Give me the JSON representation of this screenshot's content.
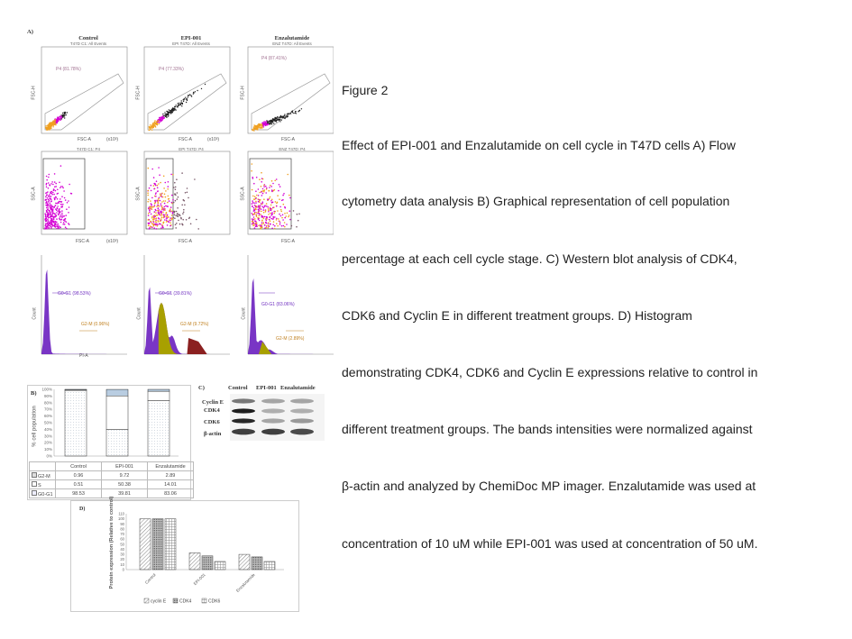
{
  "panel_labels": {
    "a": "A)",
    "b": "B)",
    "c": "C)",
    "d": "D)"
  },
  "flow": {
    "columns": [
      {
        "title": "Control",
        "sub1": "T47D C1: All Events",
        "sub2": "T47D C1: P4"
      },
      {
        "title": "EPI-001",
        "sub1": "EPI T47D: All Events",
        "sub2": "EPI T47D: P4"
      },
      {
        "title": "Enzalutamide",
        "sub1": "ENZ T47D: All Events",
        "sub2": "ENZ T47D: P4"
      }
    ],
    "scatter_gates": [
      "P4 (81.78%)",
      "P4 (77.33%)",
      "P4 (87.41%)"
    ],
    "hist_peaks": [
      "G0-G1 (98.53%)",
      "G0-G1 (39.81%)",
      "G0-G1 (83.06%)"
    ],
    "hist_g2m": [
      "G2-M (0.96%)",
      "G2-M (9.72%)",
      "G2-M (2.89%)"
    ],
    "axis_fsc_h": "FSC-H",
    "axis_fsc_a": "FSC-A",
    "axis_ssc": "SSC-A",
    "axis_count": "Count",
    "axis_pi": "PI-A",
    "axis_unit": "(x10³)"
  },
  "table_b": {
    "ylabel": "% cell population",
    "yticks": [
      "100%",
      "90%",
      "80%",
      "70%",
      "60%",
      "50%",
      "40%",
      "30%",
      "20%",
      "10%",
      "0%"
    ],
    "headers": [
      "Control",
      "EPI-001",
      "Enzalutamide"
    ],
    "rows": [
      {
        "label": "G2-M",
        "values": [
          "0.96",
          "9.72",
          "2.89"
        ]
      },
      {
        "label": "S",
        "values": [
          "0.51",
          "50.38",
          "14.01"
        ]
      },
      {
        "label": "G0-G1",
        "values": [
          "98.53",
          "39.81",
          "83.06"
        ]
      }
    ]
  },
  "chart_data": [
    {
      "type": "bar",
      "stacked": true,
      "percent": true,
      "categories": [
        "Control",
        "EPI-001",
        "Enzalutamide"
      ],
      "series": [
        {
          "name": "G2-M",
          "values": [
            0.96,
            9.72,
            2.89
          ]
        },
        {
          "name": "S",
          "values": [
            0.51,
            50.38,
            14.01
          ]
        },
        {
          "name": "G0-G1",
          "values": [
            98.53,
            39.81,
            83.06
          ]
        }
      ],
      "ylabel": "% cell population",
      "ylim": [
        0,
        100
      ]
    },
    {
      "type": "bar",
      "categories": [
        "Control",
        "EPI-001",
        "Enzalutamide"
      ],
      "series": [
        {
          "name": "cyclin E",
          "values": [
            100,
            33,
            30
          ]
        },
        {
          "name": "CDK4",
          "values": [
            100,
            27,
            25
          ]
        },
        {
          "name": "CDK6",
          "values": [
            100,
            16,
            16
          ]
        }
      ],
      "ylabel": "Protein expression (Relative to control)",
      "yticks": [
        "0",
        "10",
        "20",
        "30",
        "40",
        "50",
        "60",
        "70",
        "80",
        "90",
        "100",
        "110"
      ],
      "ylim": [
        0,
        110
      ],
      "legend": "bottom",
      "grid": false
    }
  ],
  "western": {
    "headers": [
      "Control",
      "EPI-001",
      "Enzalutamide"
    ],
    "bands": [
      "Cyclin E",
      "CDK4",
      "CDK6",
      "β-actin"
    ]
  },
  "figure_caption": {
    "title": "Figure 2",
    "lines": [
      "Effect of EPI-001 and Enzalutamide on cell cycle in T47D cells A) Flow",
      "cytometry data analysis B) Graphical representation of cell population",
      "percentage at each cell cycle stage. C) Western blot analysis of CDK4,",
      "CDK6 and Cyclin E in different treatment groups. D) Histogram",
      "demonstrating CDK4, CDK6 and Cyclin E expressions relative to control in",
      "different treatment groups. The bands intensities were normalized against",
      "β-actin and analyzed by ChemiDoc MP imager. Enzalutamide was used at",
      "concentration of 10 uM while EPI-001 was used at concentration of 50 uM."
    ]
  },
  "colors": {
    "magenta": "#d400d4",
    "purple": "#6a1fbf",
    "olive": "#a8a000",
    "orange": "#f0a020",
    "darkred": "#8b2020",
    "gate": "#9a9a9a"
  }
}
